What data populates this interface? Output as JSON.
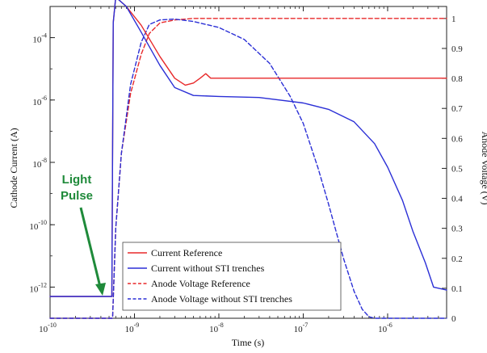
{
  "chart_data": {
    "type": "line",
    "xlabel": "Time (s)",
    "ylabel_left": "Cathode Current (A)",
    "ylabel_right": "Anode Voltage (V)",
    "x_scale": "log",
    "y_left_scale": "log",
    "xlim": [
      1e-10,
      5e-06
    ],
    "ylim_left": [
      1e-13,
      0.001
    ],
    "ylim_right": [
      0,
      1.04
    ],
    "x_ticks": [
      {
        "value": 1e-10,
        "mant": "10",
        "exp": "-10"
      },
      {
        "value": 1e-09,
        "mant": "10",
        "exp": "-9"
      },
      {
        "value": 1e-08,
        "mant": "10",
        "exp": "-8"
      },
      {
        "value": 1e-07,
        "mant": "10",
        "exp": "-7"
      },
      {
        "value": 1e-06,
        "mant": "10",
        "exp": "-6"
      }
    ],
    "y_left_ticks": [
      {
        "value": 1e-12,
        "mant": "10",
        "exp": "-12"
      },
      {
        "value": 1e-10,
        "mant": "10",
        "exp": "-10"
      },
      {
        "value": 1e-08,
        "mant": "10",
        "exp": "-8"
      },
      {
        "value": 1e-06,
        "mant": "10",
        "exp": "-6"
      },
      {
        "value": 0.0001,
        "mant": "10",
        "exp": "-4"
      }
    ],
    "y_right_ticks": [
      "0",
      "0.1",
      "0.2",
      "0.3",
      "0.4",
      "0.5",
      "0.6",
      "0.7",
      "0.8",
      "0.9",
      "1"
    ],
    "grid": false,
    "legend_position": "lower-left",
    "annotation": {
      "lines": [
        "Light",
        "Pulse"
      ],
      "color": "#1f8a3a"
    },
    "series": [
      {
        "name": "Current Reference",
        "axis": "left",
        "color": "#e8292a",
        "dash": "solid",
        "x": [
          1e-10,
          5.4e-10,
          5.6e-10,
          6e-10,
          8e-10,
          1.2e-09,
          2e-09,
          3e-09,
          4e-09,
          5e-09,
          6e-09,
          7e-09,
          8e-09,
          1e-08,
          3e-08,
          1e-07,
          1e-06,
          5e-06
        ],
        "y": [
          5e-13,
          5e-13,
          0.0003,
          0.002,
          0.001,
          0.00025,
          2.5e-05,
          5e-06,
          3e-06,
          3.5e-06,
          5e-06,
          7e-06,
          5e-06,
          5e-06,
          5e-06,
          5e-06,
          5e-06,
          5e-06
        ]
      },
      {
        "name": "Current without STI trenches",
        "axis": "left",
        "color": "#2b2fd6",
        "dash": "solid",
        "x": [
          1e-10,
          5.4e-10,
          5.6e-10,
          6e-10,
          8e-10,
          1.2e-09,
          2e-09,
          3e-09,
          5e-09,
          1e-08,
          3e-08,
          1e-07,
          2e-07,
          4e-07,
          7e-07,
          1e-06,
          1.5e-06,
          2e-06,
          2.8e-06,
          3.5e-06,
          5e-06
        ],
        "y": [
          5e-13,
          5e-13,
          0.0003,
          0.002,
          0.001,
          0.00015,
          1.3e-05,
          2.5e-06,
          1.4e-06,
          1.3e-06,
          1.2e-06,
          8e-07,
          5e-07,
          2e-07,
          4e-08,
          7e-09,
          6e-10,
          6e-11,
          6e-12,
          1e-12,
          8e-13
        ]
      },
      {
        "name": "Anode Voltage Reference",
        "axis": "right",
        "color": "#e8292a",
        "dash": "dashed",
        "x": [
          1e-10,
          5.5e-10,
          6e-10,
          7e-10,
          9e-10,
          1.2e-09,
          1.5e-09,
          2e-09,
          3e-09,
          5e-09,
          1e-08,
          1e-07,
          1e-06,
          5e-06
        ],
        "y": [
          0,
          0,
          0.3,
          0.55,
          0.75,
          0.88,
          0.95,
          0.985,
          0.995,
          1,
          1,
          1,
          1,
          1
        ]
      },
      {
        "name": "Anode Voltage without STI trenches",
        "axis": "right",
        "color": "#2b2fd6",
        "dash": "dashed",
        "x": [
          1e-10,
          5.5e-10,
          6e-10,
          7e-10,
          9e-10,
          1.2e-09,
          1.5e-09,
          2e-09,
          3e-09,
          5e-09,
          1e-08,
          2e-08,
          4e-08,
          7e-08,
          1e-07,
          1.5e-07,
          2e-07,
          3e-07,
          4e-07,
          5e-07,
          6e-07,
          7e-07,
          1e-06,
          5e-06
        ],
        "y": [
          0,
          0,
          0.3,
          0.55,
          0.78,
          0.92,
          0.98,
          0.995,
          0.998,
          0.99,
          0.97,
          0.93,
          0.85,
          0.74,
          0.65,
          0.5,
          0.38,
          0.2,
          0.09,
          0.03,
          0.005,
          0,
          0,
          0
        ]
      }
    ]
  }
}
